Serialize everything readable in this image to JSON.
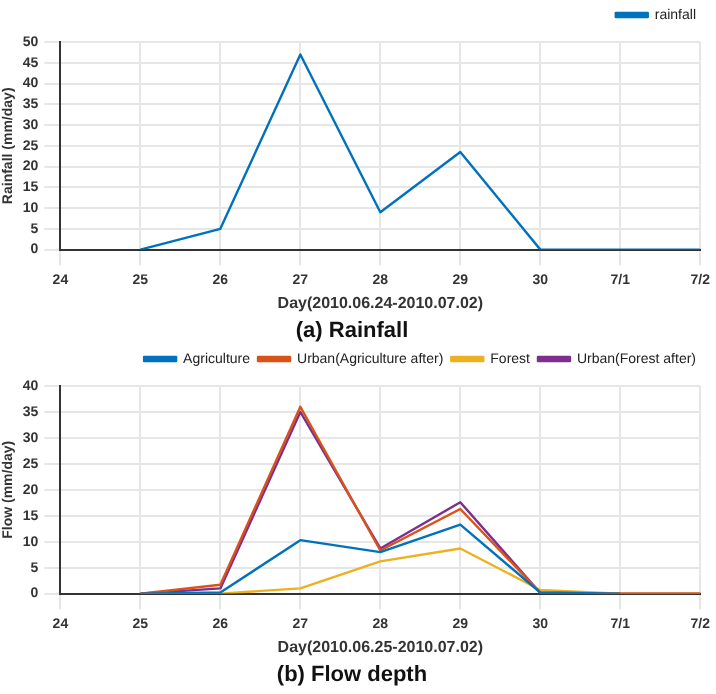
{
  "chart_data": [
    {
      "type": "line",
      "title": "(a) Rainfall",
      "xlabel": "Day(2010.06.24-2010.07.02)",
      "ylabel": "Rainfall (mm/day)",
      "categories": [
        "24",
        "25",
        "26",
        "27",
        "28",
        "29",
        "30",
        "7/1",
        "7/2"
      ],
      "series": [
        {
          "name": "rainfall",
          "color": "#0072bd",
          "values": [
            null,
            0,
            5,
            47,
            9,
            23.5,
            0,
            0,
            0
          ]
        }
      ],
      "ylim": [
        0,
        50
      ],
      "yticks": [
        0,
        5,
        10,
        15,
        20,
        25,
        30,
        35,
        40,
        45,
        50
      ],
      "grid": true,
      "legend": "top right",
      "marker": "none",
      "line_style": "solid"
    },
    {
      "type": "line",
      "title": "(b) Flow depth",
      "xlabel": "Day(2010.06.25-2010.07.02)",
      "ylabel": "Flow (mm/day)",
      "categories": [
        "24",
        "25",
        "26",
        "27",
        "28",
        "29",
        "30",
        "7/1",
        "7/2"
      ],
      "series": [
        {
          "name": "Agriculture",
          "color": "#0072bd",
          "values": [
            null,
            0,
            0.2,
            10.3,
            8,
            13.3,
            0.2,
            0,
            null
          ]
        },
        {
          "name": "Urban(Agriculture after)",
          "color": "#d95319",
          "values": [
            null,
            0,
            1.7,
            36,
            8.3,
            16.3,
            0.2,
            0,
            0
          ]
        },
        {
          "name": "Forest",
          "color": "#edb120",
          "values": [
            null,
            0,
            0,
            1,
            6.2,
            8.7,
            0.7,
            0,
            0
          ]
        },
        {
          "name": "Urban(Forest after)",
          "color": "#7e2f8e",
          "values": [
            null,
            0,
            1,
            35,
            8.7,
            17.6,
            0.1,
            0,
            0
          ]
        }
      ],
      "ylim": [
        0,
        40
      ],
      "yticks": [
        0,
        5,
        10,
        15,
        20,
        25,
        30,
        35,
        40
      ],
      "grid": true,
      "legend": "top right",
      "marker": "none",
      "line_style": "solid"
    }
  ]
}
